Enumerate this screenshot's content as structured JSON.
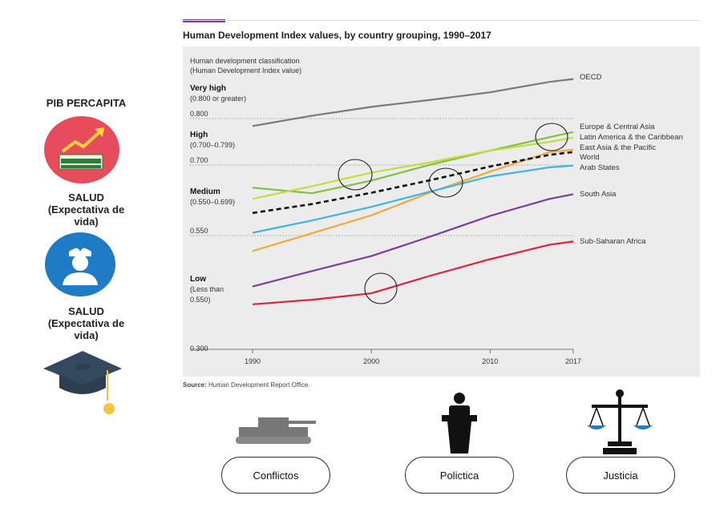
{
  "sidebar": {
    "items": [
      {
        "label": "PIB PERCAPITA",
        "icon": "money-growth-icon"
      },
      {
        "label": "SALUD\n(Expectativa de\nvida)",
        "icon": "nurse-icon"
      },
      {
        "label": "SALUD\n(Expectativa de\nvida)",
        "icon": "graduation-cap-icon"
      }
    ]
  },
  "chart_data": {
    "type": "line",
    "title": "Human Development Index values, by country grouping, 1990–2017",
    "source_label": "Source:",
    "source_text": "Human Development Report Office.",
    "axis_note": [
      "Human development classification",
      "(Human Development Index value)"
    ],
    "x": [
      1990,
      1995,
      2000,
      2005,
      2010,
      2015,
      2017
    ],
    "x_ticks": [
      "1990",
      "2000",
      "2010",
      "2017"
    ],
    "y_ticks": [
      "0.800",
      "0.700",
      "0.550",
      "0.300"
    ],
    "ylim": [
      0.3,
      1.0
    ],
    "xlim": [
      1990,
      2017
    ],
    "grid": "dotted horizontal at class thresholds",
    "bands": [
      {
        "name": "Very high",
        "range": "(0.800 or greater)"
      },
      {
        "name": "High",
        "range": "(0.700–0.799)"
      },
      {
        "name": "Medium",
        "range": "(0.550–0.699)"
      },
      {
        "name": "Low",
        "range": "(Less than\n0.550)"
      }
    ],
    "series": [
      {
        "name": "OECD",
        "color": "#7a7a7a",
        "dashed": false,
        "values": [
          0.784,
          0.807,
          0.828,
          0.845,
          0.863,
          0.888,
          0.895
        ]
      },
      {
        "name": "Europe & Central Asia",
        "color": "#7cc242",
        "dashed": false,
        "values": [
          0.652,
          0.64,
          0.667,
          0.701,
          0.731,
          0.76,
          0.771
        ]
      },
      {
        "name": "Latin America & the Caribbean",
        "color": "#c2dc3c",
        "dashed": false,
        "values": [
          0.628,
          0.655,
          0.684,
          0.706,
          0.731,
          0.75,
          0.759
        ]
      },
      {
        "name": "East Asia & the Pacific",
        "color": "#f2a93a",
        "dashed": false,
        "values": [
          0.516,
          0.555,
          0.593,
          0.642,
          0.686,
          0.728,
          0.733
        ]
      },
      {
        "name": "World",
        "color": "#111111",
        "dashed": true,
        "values": [
          0.598,
          0.617,
          0.641,
          0.668,
          0.697,
          0.722,
          0.728
        ]
      },
      {
        "name": "Arab States",
        "color": "#3fb4e8",
        "dashed": false,
        "values": [
          0.556,
          0.582,
          0.611,
          0.644,
          0.676,
          0.695,
          0.699
        ]
      },
      {
        "name": "South Asia",
        "color": "#7b3f9e",
        "dashed": false,
        "values": [
          0.438,
          0.472,
          0.505,
          0.548,
          0.592,
          0.628,
          0.638
        ]
      },
      {
        "name": "Sub-Saharan Africa",
        "color": "#e2203e",
        "dashed": false,
        "values": [
          0.399,
          0.409,
          0.423,
          0.462,
          0.498,
          0.53,
          0.537
        ]
      }
    ],
    "legend_placement": "right-end labels"
  },
  "bottom": {
    "buttons": [
      {
        "label": "Conflictos",
        "icon": "tank-icon"
      },
      {
        "label": "Polictica",
        "icon": "podium-icon"
      },
      {
        "label": "Justicia",
        "icon": "scales-icon"
      }
    ]
  },
  "colors": {
    "plot_bg": "#ececec",
    "accent": "#7b3f9e"
  }
}
